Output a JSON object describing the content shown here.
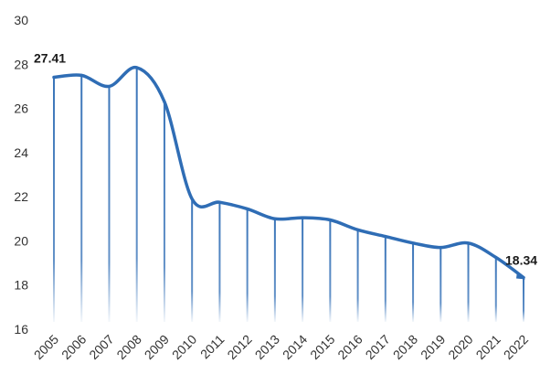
{
  "chart_data": {
    "type": "line",
    "x": [
      "2005",
      "2006",
      "2007",
      "2008",
      "2009",
      "2010",
      "2011",
      "2012",
      "2013",
      "2014",
      "2015",
      "2016",
      "2017",
      "2018",
      "2019",
      "2020",
      "2021",
      "2022"
    ],
    "series": [
      {
        "values": [
          27.41,
          27.5,
          27.0,
          27.85,
          26.3,
          21.9,
          21.75,
          21.45,
          21.0,
          21.05,
          20.95,
          20.5,
          20.2,
          19.9,
          19.7,
          19.9,
          19.25,
          18.34
        ]
      }
    ],
    "data_labels": [
      {
        "x": "2005",
        "text": "27.41"
      },
      {
        "x": "2022",
        "text": "18.34"
      }
    ],
    "ylim": [
      16,
      30
    ],
    "yticks": [
      16,
      18,
      20,
      22,
      24,
      26,
      28,
      30
    ],
    "grid": false,
    "line_color": "#2f6db5",
    "stem_color": "#2f6db5",
    "title": "",
    "xlabel": "",
    "ylabel": ""
  }
}
